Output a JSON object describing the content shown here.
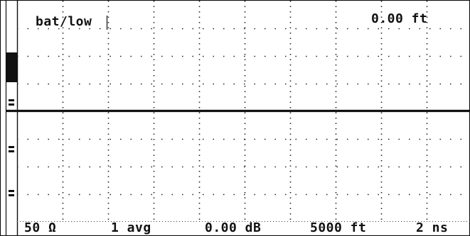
{
  "status": {
    "battery": "bat/low",
    "distance": "0.00 ft"
  },
  "footer": {
    "impedance": "50 Ω",
    "averages": "1 avg",
    "gain": "0.00 dB",
    "range": "5000 ft",
    "pulse_width": "2 ns"
  },
  "left_strip": {
    "label_a": "",
    "label_b": "",
    "label_c": "",
    "label_d": ""
  }
}
